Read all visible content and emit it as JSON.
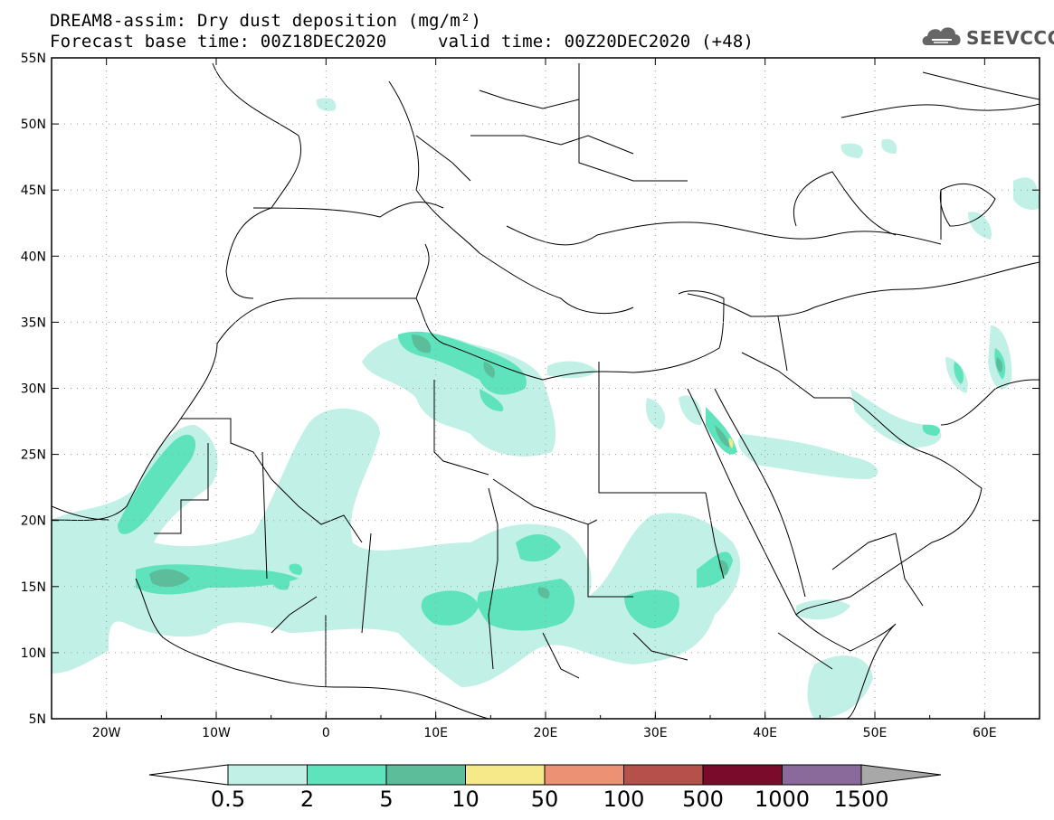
{
  "header": {
    "title_line1": "DREAM8-assim: Dry dust deposition (mg/m²)",
    "title_line2": "Forecast base time: 00Z18DEC2020",
    "valid_time": "valid time: 00Z20DEC2020 (+48)",
    "logo_text": "SEEVCCC"
  },
  "map": {
    "lat_labels": [
      "55N",
      "50N",
      "45N",
      "40N",
      "35N",
      "30N",
      "25N",
      "20N",
      "15N",
      "10N",
      "5N"
    ],
    "lon_labels": [
      "20W",
      "10W",
      "0",
      "10E",
      "20E",
      "30E",
      "40E",
      "50E",
      "60E"
    ],
    "colors": {
      "c0": "#c1f0e6",
      "c1": "#5ee3bc",
      "c2": "#5bbd9a",
      "c3": "#f5e98a",
      "c4": "#ec9173",
      "c5": "#b5514a",
      "c6": "#7a0b2a",
      "c7": "#8a6a9a",
      "c8": "#a8a8a8"
    }
  },
  "colorbar": {
    "labels": [
      "0.5",
      "2",
      "5",
      "10",
      "50",
      "100",
      "500",
      "1000",
      "1500"
    ],
    "colors": [
      "#c1f0e6",
      "#5ee3bc",
      "#5bbd9a",
      "#f5e98a",
      "#ec9173",
      "#b5514a",
      "#7a0b2a",
      "#8a6a9a",
      "#a8a8a8"
    ]
  }
}
